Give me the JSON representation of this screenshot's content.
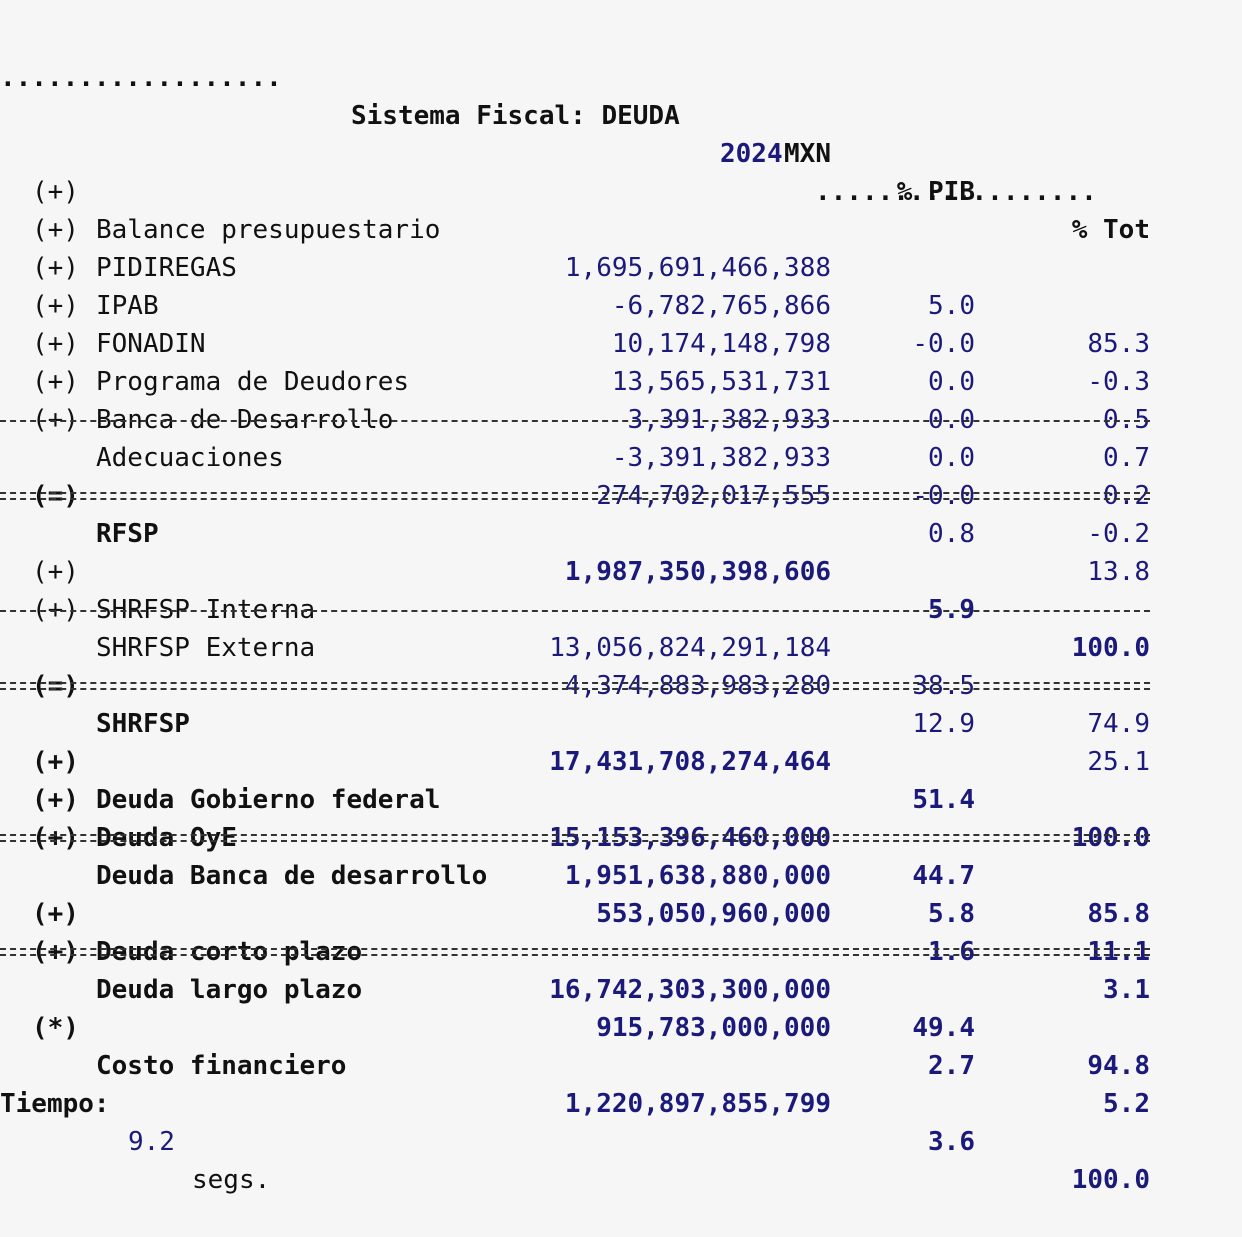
{
  "title": {
    "left_dots": "..................",
    "text": "Sistema Fiscal: DEUDA",
    "year": "2024",
    "right_dots": ".................."
  },
  "columns": {
    "mxn": "MXN",
    "pib": "% PIB",
    "tot": "% Tot"
  },
  "section1": [
    {
      "sign": "(+)",
      "label": "Balance presupuestario",
      "mxn": "1,695,691,466,388",
      "pib": "5.0",
      "tot": "85.3"
    },
    {
      "sign": "(+)",
      "label": "PIDIREGAS",
      "mxn": "-6,782,765,866",
      "pib": "-0.0",
      "tot": "-0.3"
    },
    {
      "sign": "(+)",
      "label": "IPAB",
      "mxn": "10,174,148,798",
      "pib": "0.0",
      "tot": "0.5"
    },
    {
      "sign": "(+)",
      "label": "FONADIN",
      "mxn": "13,565,531,731",
      "pib": "0.0",
      "tot": "0.7"
    },
    {
      "sign": "(+)",
      "label": "Programa de Deudores",
      "mxn": "3,391,382,933",
      "pib": "0.0",
      "tot": "0.2"
    },
    {
      "sign": "(+)",
      "label": "Banca de Desarrollo",
      "mxn": "-3,391,382,933",
      "pib": "-0.0",
      "tot": "-0.2"
    },
    {
      "sign": "(+)",
      "label": "Adecuaciones",
      "mxn": "274,702,017,555",
      "pib": "0.8",
      "tot": "13.8"
    }
  ],
  "rfsp": {
    "sign": "(=)",
    "label": "RFSP",
    "mxn": "1,987,350,398,606",
    "pib": "5.9",
    "tot": "100.0"
  },
  "section2": [
    {
      "sign": "(+)",
      "label": "SHRFSP Interna",
      "mxn": "13,056,824,291,184",
      "pib": "38.5",
      "tot": "74.9"
    },
    {
      "sign": "(+)",
      "label": "SHRFSP Externa",
      "mxn": "4,374,883,983,280",
      "pib": "12.9",
      "tot": "25.1"
    }
  ],
  "shrfsp": {
    "sign": "(=)",
    "label": "SHRFSP",
    "mxn": "17,431,708,274,464",
    "pib": "51.4",
    "tot": "100.0"
  },
  "section3": [
    {
      "sign": "(+)",
      "label": "Deuda Gobierno federal",
      "mxn": "15,153,396,460,000",
      "pib": "44.7",
      "tot": "85.8"
    },
    {
      "sign": "(+)",
      "label": "Deuda OyE",
      "mxn": "1,951,638,880,000",
      "pib": "5.8",
      "tot": "11.1"
    },
    {
      "sign": "(+)",
      "label": "Deuda Banca de desarrollo",
      "mxn": "553,050,960,000",
      "pib": "1.6",
      "tot": "3.1"
    }
  ],
  "section4": [
    {
      "sign": "(+)",
      "label": "Deuda corto plazo",
      "mxn": "16,742,303,300,000",
      "pib": "49.4",
      "tot": "94.8"
    },
    {
      "sign": "(+)",
      "label": "Deuda largo plazo",
      "mxn": "915,783,000,000",
      "pib": "2.7",
      "tot": "5.2"
    }
  ],
  "costo": {
    "sign": "(*)",
    "label": "Costo financiero",
    "mxn": "1,220,897,855,799",
    "pib": "3.6",
    "tot": "100.0"
  },
  "footer": {
    "label": "Tiempo:",
    "value": "9.2",
    "unit": "segs."
  }
}
